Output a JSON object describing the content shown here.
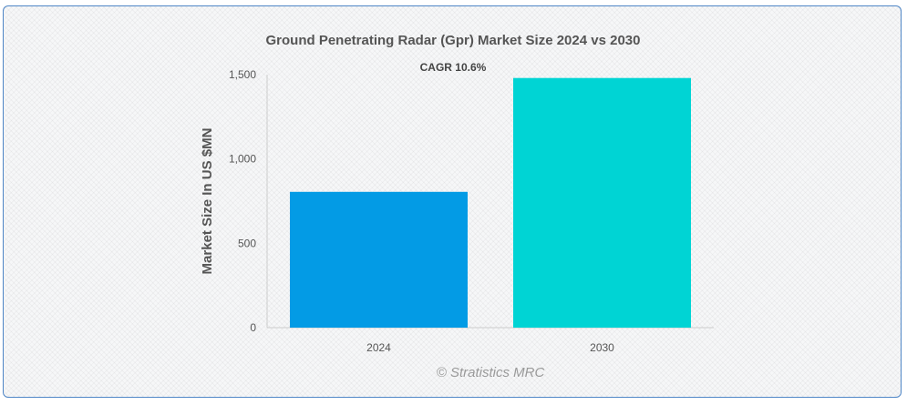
{
  "chart_data": {
    "type": "bar",
    "title": "Ground Penetrating Radar (Gpr) Market Size 2024 vs 2030",
    "annotation": "CAGR 10.6%",
    "categories": [
      "2024",
      "2030"
    ],
    "values": [
      805,
      1480
    ],
    "colors": [
      "#039be5",
      "#00d4d4"
    ],
    "xlabel": "",
    "ylabel": "Market Size In US $MN",
    "ylim": [
      0,
      1500
    ],
    "yticks": [
      0,
      500,
      1000,
      1500
    ],
    "ytick_labels": [
      "0",
      "500",
      "1,000",
      "1,500"
    ],
    "grid": false,
    "legend": "none"
  },
  "watermark": "© Stratistics MRC"
}
